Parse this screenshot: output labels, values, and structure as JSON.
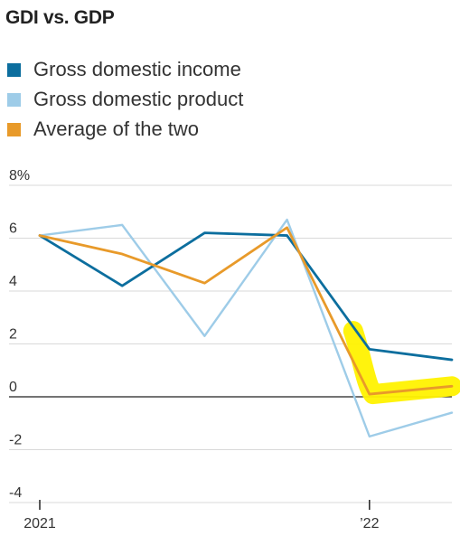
{
  "title": "GDI vs. GDP",
  "colors": {
    "gdi": "#0c6e9e",
    "gdp": "#9ecce8",
    "avg": "#e89a2a",
    "highlight": "#fff200",
    "grid": "#d9d9d9",
    "zero": "#222222"
  },
  "chart_data": {
    "type": "line",
    "title": "GDI vs. GDP",
    "xlabel": "",
    "ylabel": "",
    "y_unit": "%",
    "ylim": [
      -4,
      8
    ],
    "yticks": [
      8,
      6,
      4,
      2,
      0,
      -2,
      -4
    ],
    "ytick_labels": [
      "8%",
      "6",
      "4",
      "2",
      "0",
      "-2",
      "-4"
    ],
    "x": [
      "2021 Q1",
      "2021 Q2",
      "2021 Q3",
      "2021 Q4",
      "2022 Q1",
      "2022 Q2"
    ],
    "xtick_labels": [
      {
        "index": 0,
        "label": "2021"
      },
      {
        "index": 4,
        "label": "’22"
      }
    ],
    "grid": true,
    "legend_placement": "top-left",
    "highlight": {
      "series": "Average of the two",
      "from_index": 4,
      "to_index": 5,
      "color": "#fff200"
    },
    "series": [
      {
        "name": "Gross domestic income",
        "color": "#0c6e9e",
        "values": [
          6.1,
          4.2,
          6.2,
          6.1,
          1.8,
          1.4
        ]
      },
      {
        "name": "Gross domestic product",
        "color": "#9ecce8",
        "values": [
          6.1,
          6.5,
          2.3,
          6.7,
          -1.5,
          -0.6
        ]
      },
      {
        "name": "Average of the two",
        "color": "#e89a2a",
        "values": [
          6.1,
          5.4,
          4.3,
          6.4,
          0.1,
          0.4
        ]
      }
    ]
  }
}
